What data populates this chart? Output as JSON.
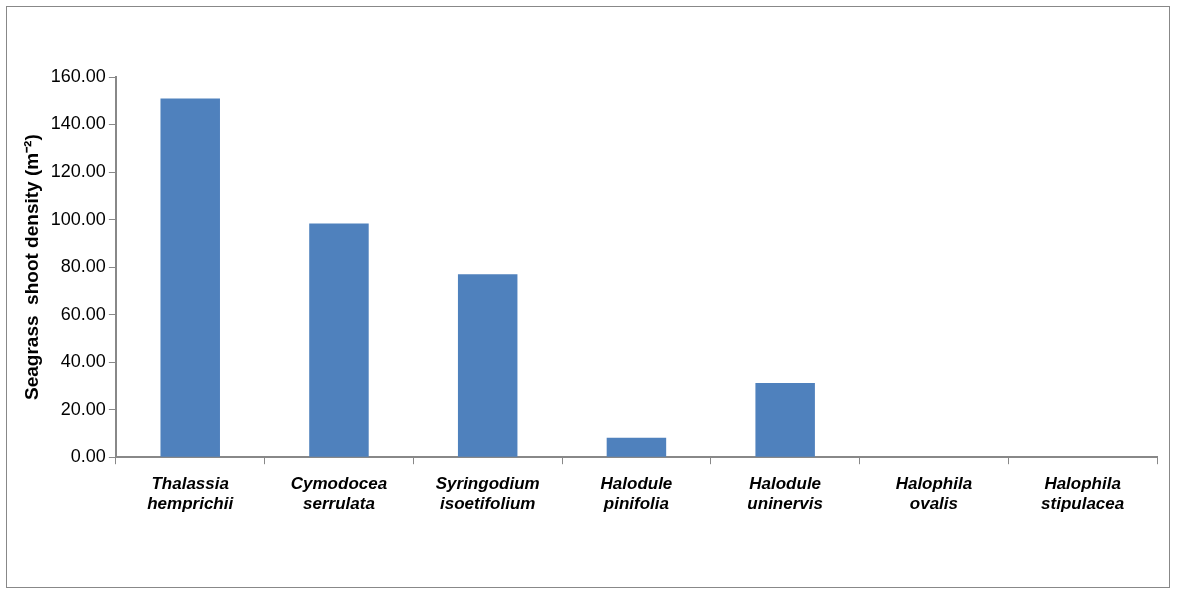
{
  "chart_data": {
    "type": "bar",
    "ylabel": "Seagrass  shoot density (m⁻²)",
    "categories": [
      "Thalassia hemprichii",
      "Cymodocea serrulata",
      "Syringodium isoetifolium",
      "Halodule pinifolia",
      "Halodule uninervis",
      "Halophila ovalis",
      "Halophila stipulacea"
    ],
    "values": [
      151,
      98.4,
      77,
      8.2,
      31.2,
      0,
      0
    ],
    "color": "#4f81bd",
    "ylim": [
      0,
      160
    ],
    "yticks": [
      {
        "value": 0,
        "label": "0.00"
      },
      {
        "value": 20,
        "label": "20.00"
      },
      {
        "value": 40,
        "label": "40.00"
      },
      {
        "value": 60,
        "label": "60.00"
      },
      {
        "value": 80,
        "label": "80.00"
      },
      {
        "value": 100,
        "label": "100.00"
      },
      {
        "value": 120,
        "label": "120.00"
      },
      {
        "value": 140,
        "label": "140.00"
      },
      {
        "value": 160,
        "label": "160.00"
      }
    ],
    "grid": false,
    "legend": false
  }
}
